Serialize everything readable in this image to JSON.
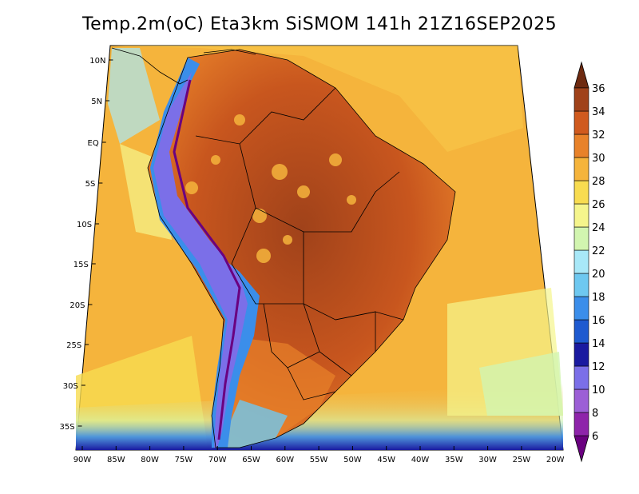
{
  "title": "Temp.2m(oC) Eta3km SiSMOM 141h 21Z16SEP2025",
  "lat_labels": [
    "10N",
    "5N",
    "EQ",
    "5S",
    "10S",
    "15S",
    "20S",
    "25S",
    "30S",
    "35S"
  ],
  "lon_labels": [
    "90W",
    "85W",
    "80W",
    "75W",
    "70W",
    "65W",
    "60W",
    "55W",
    "50W",
    "45W",
    "40W",
    "35W",
    "30W",
    "25W",
    "20W"
  ],
  "colorbar": {
    "levels": [
      "6",
      "8",
      "10",
      "12",
      "14",
      "16",
      "18",
      "20",
      "22",
      "24",
      "26",
      "28",
      "30",
      "32",
      "34",
      "36"
    ],
    "colors": [
      "#6a0080",
      "#8e24aa",
      "#9c5fd6",
      "#7b6fe8",
      "#1a1aa0",
      "#1e5ad0",
      "#3b8eea",
      "#6ec8f0",
      "#a8e8f8",
      "#d2f5b0",
      "#f5f58c",
      "#f8dc50",
      "#f5b43c",
      "#e8822a",
      "#d05a1e",
      "#a0421a",
      "#6e2a10"
    ]
  }
}
